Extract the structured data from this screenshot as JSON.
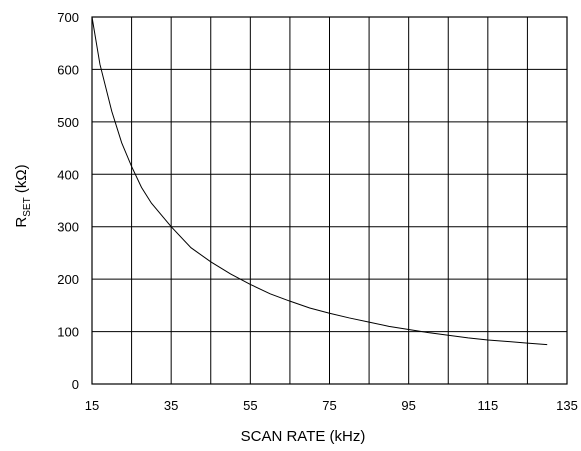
{
  "chart_data": {
    "type": "line",
    "title": "",
    "xlabel": "SCAN RATE  (kHz)",
    "ylabel": {
      "main": "R",
      "subscript": "SET",
      "suffix": " (kΩ)"
    },
    "xlim": [
      15,
      135
    ],
    "ylim": [
      0,
      700
    ],
    "xticks": [
      15,
      25,
      35,
      45,
      55,
      65,
      75,
      85,
      95,
      105,
      115,
      125,
      135
    ],
    "xtick_labels": [
      "15",
      "35",
      "55",
      "75",
      "95",
      "115",
      "135"
    ],
    "yticks": [
      0,
      100,
      200,
      300,
      400,
      500,
      600,
      700
    ],
    "ytick_labels": [
      "0",
      "100",
      "200",
      "300",
      "400",
      "500",
      "600",
      "700"
    ],
    "grid": true,
    "series": [
      {
        "color": "#000000",
        "x": [
          15,
          17,
          20,
          22.5,
          25,
          27.5,
          30,
          35,
          40,
          45,
          50,
          55,
          60,
          65,
          70,
          75,
          80,
          85,
          90,
          95,
          100,
          105,
          110,
          115,
          120,
          125,
          130
        ],
        "y": [
          700,
          610,
          520,
          460,
          415,
          375,
          345,
          300,
          260,
          233,
          210,
          190,
          172,
          158,
          145,
          135,
          126,
          118,
          110,
          104,
          98,
          93,
          88,
          84,
          81,
          78,
          75
        ]
      }
    ]
  }
}
